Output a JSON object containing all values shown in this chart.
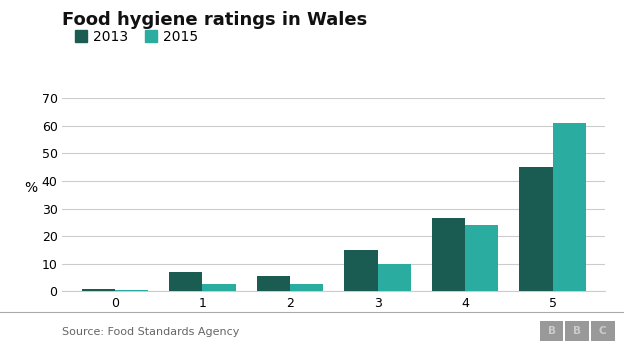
{
  "title": "Food hygiene ratings in Wales",
  "ylabel": "%",
  "categories": [
    0,
    1,
    2,
    3,
    4,
    5
  ],
  "values_2013": [
    0.7,
    7.0,
    5.7,
    15.0,
    26.5,
    45.0
  ],
  "values_2015": [
    0.5,
    2.5,
    2.5,
    10.0,
    24.0,
    61.0
  ],
  "color_2013": "#1a5c52",
  "color_2015": "#2aaca0",
  "ylim": [
    0,
    70
  ],
  "yticks": [
    0,
    10,
    20,
    30,
    40,
    50,
    60,
    70
  ],
  "legend_labels": [
    "2013",
    "2015"
  ],
  "source_text": "Source: Food Standards Agency",
  "bar_width": 0.38,
  "background_color": "#ffffff",
  "grid_color": "#cccccc",
  "title_fontsize": 13,
  "legend_fontsize": 10,
  "tick_fontsize": 9,
  "source_fontsize": 8,
  "ylabel_fontsize": 10,
  "bbc_bg": "#999999",
  "bbc_text": "#cccccc",
  "source_color": "#666666",
  "separator_color": "#aaaaaa"
}
